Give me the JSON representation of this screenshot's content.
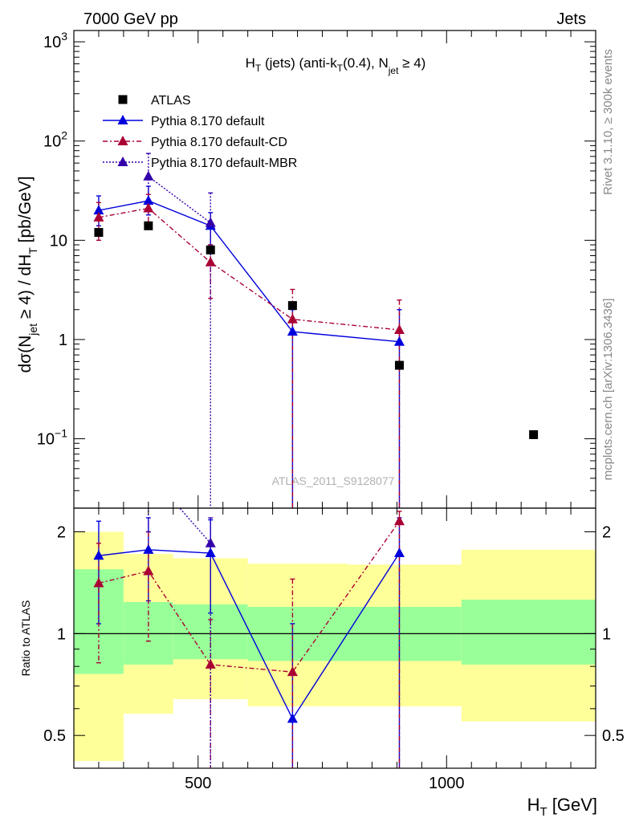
{
  "header": {
    "left": "7000 GeV pp",
    "right": "Jets"
  },
  "side_text": {
    "top": "Rivet 3.1.10, ≥ 300k events",
    "bottom": "mcplots.cern.ch [arXiv:1306.3436]"
  },
  "colors": {
    "atlas": "#000000",
    "default": "#0000dd",
    "cd": "#aa0033",
    "mbr": "#3300aa",
    "band_inner": "#99ff99",
    "band_outer": "#ffff99"
  },
  "chart_data": {
    "type": "scatter",
    "title": {
      "prefix": "H",
      "prefix_sub": "T",
      "middle": " (jets) (anti-k",
      "middle_sub": "T",
      "suffix": "(0.4), N",
      "suffix_sub": "jet",
      "tail": " ≥ 4)"
    },
    "watermark": "ATLAS_2011_S9128077",
    "xlabel": "H",
    "xlabel_sub": "T",
    "xlabel_unit": " [GeV]",
    "xlim": [
      250,
      1300
    ],
    "x_ticks": [
      500,
      1000
    ],
    "x_tick_labels": [
      "500",
      "1000"
    ],
    "main": {
      "ylabel_parts": [
        "dσ(N",
        "jet",
        " ≥ 4) / dH",
        "T",
        " [pb/GeV]"
      ],
      "yscale": "log",
      "ylim": [
        0.02,
        1300
      ],
      "y_ticks": [
        0.1,
        1,
        10,
        100,
        1000
      ],
      "y_tick_labels": [
        {
          "base": "10",
          "exp": "−1"
        },
        {
          "base": "1",
          "exp": ""
        },
        {
          "base": "10",
          "exp": ""
        },
        {
          "base": "10",
          "exp": "2"
        },
        {
          "base": "10",
          "exp": "3"
        }
      ],
      "legend": [
        "ATLAS",
        "Pythia 8.170 default",
        "Pythia 8.170 default-CD",
        "Pythia 8.170 default-MBR"
      ],
      "legend_position": "top-left"
    },
    "series": [
      {
        "name": "ATLAS",
        "style": "marker-square",
        "x": [
          300,
          400,
          525,
          690,
          905,
          1175
        ],
        "y": [
          12,
          14,
          8,
          2.2,
          0.55,
          0.11
        ]
      },
      {
        "name": "Pythia 8.170 default",
        "style": "solid",
        "x": [
          300,
          400,
          525,
          690,
          905
        ],
        "y": [
          20,
          25,
          14,
          1.2,
          0.95
        ],
        "err_hi": [
          28,
          35,
          19,
          2.0,
          2.0
        ],
        "err_lo": [
          14,
          18,
          9,
          0.0,
          0.0
        ],
        "ratio": [
          1.7,
          1.77,
          1.73,
          0.56,
          1.73
        ],
        "ratio_err_hi": [
          2.15,
          2.2,
          2.17,
          1.07,
          2.2
        ],
        "ratio_err_lo": [
          1.07,
          1.25,
          1.15,
          0.0,
          0.0
        ]
      },
      {
        "name": "Pythia 8.170 default-CD",
        "style": "dashdot",
        "x": [
          300,
          400,
          525,
          690,
          905
        ],
        "y": [
          17,
          21,
          6,
          1.6,
          1.25
        ],
        "err_hi": [
          24,
          29,
          9,
          3.2,
          2.5
        ],
        "err_lo": [
          10,
          14,
          2.6,
          0.0,
          0.0
        ],
        "ratio": [
          1.41,
          1.53,
          0.81,
          0.77,
          2.15
        ],
        "ratio_err_hi": [
          1.85,
          2.0,
          1.1,
          1.45,
          2.3
        ],
        "ratio_err_lo": [
          0.82,
          0.95,
          0.0,
          0.0,
          0.0
        ]
      },
      {
        "name": "Pythia 8.170 default-MBR",
        "style": "dotted",
        "x": [
          400,
          525
        ],
        "y": [
          44,
          15
        ],
        "err_hi": [
          75,
          30
        ],
        "err_lo": [
          25,
          0.0
        ],
        "ratio": [
          3.0,
          1.85
        ],
        "ratio_err_hi": [
          3.5,
          2.2
        ],
        "ratio_err_lo": [
          2.0,
          0.0
        ]
      }
    ],
    "ratio": {
      "ylabel": "Ratio to ATLAS",
      "yscale": "log",
      "ylim": [
        0.4,
        2.35
      ],
      "y_ticks": [
        0.5,
        1,
        2
      ],
      "y_tick_labels": [
        "0.5",
        "1",
        "2"
      ],
      "bins": [
        250,
        350,
        450,
        600,
        800,
        1030,
        1300
      ],
      "inner_band": [
        [
          0.76,
          1.55
        ],
        [
          0.81,
          1.24
        ],
        [
          0.84,
          1.22
        ],
        [
          0.83,
          1.2
        ],
        [
          0.83,
          1.2
        ],
        [
          0.81,
          1.26
        ]
      ],
      "outer_band": [
        [
          0.42,
          2.0
        ],
        [
          0.58,
          1.72
        ],
        [
          0.64,
          1.67
        ],
        [
          0.61,
          1.61
        ],
        [
          0.61,
          1.6
        ],
        [
          0.55,
          1.77
        ]
      ]
    }
  }
}
